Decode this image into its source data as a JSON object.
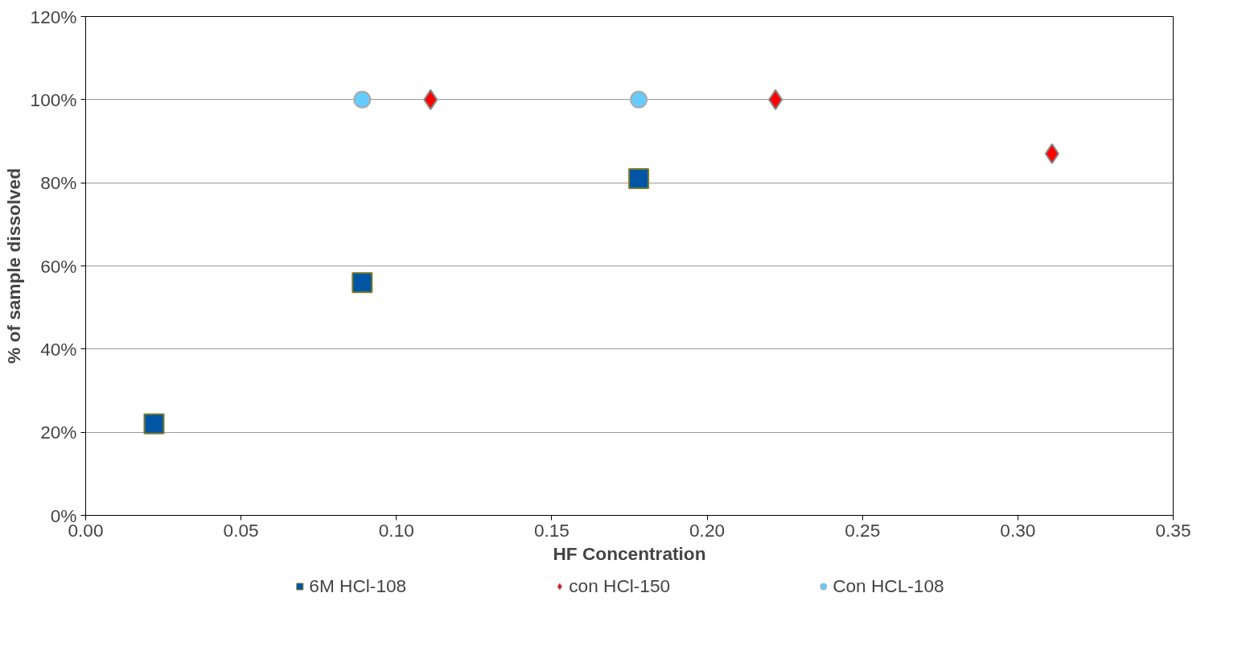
{
  "chart_data": {
    "type": "scatter",
    "xlabel": "HF Concentration",
    "ylabel": "% of sample dissolved",
    "xlim": [
      0,
      0.35
    ],
    "ylim": [
      0,
      120
    ],
    "xticks": [
      {
        "value": 0,
        "label": "0.00"
      },
      {
        "value": 0.05,
        "label": "0.05"
      },
      {
        "value": 0.1,
        "label": "0.10"
      },
      {
        "value": 0.15,
        "label": "0.15"
      },
      {
        "value": 0.2,
        "label": "0.20"
      },
      {
        "value": 0.25,
        "label": "0.25"
      },
      {
        "value": 0.3,
        "label": "0.30"
      },
      {
        "value": 0.35,
        "label": "0.35"
      }
    ],
    "yticks": [
      {
        "value": 0,
        "label": "0%"
      },
      {
        "value": 20,
        "label": "20%"
      },
      {
        "value": 40,
        "label": "40%"
      },
      {
        "value": 60,
        "label": "60%"
      },
      {
        "value": 80,
        "label": "80%"
      },
      {
        "value": 100,
        "label": "100%"
      },
      {
        "value": 120,
        "label": "120%"
      }
    ],
    "grid": "y",
    "legend": "bottom",
    "series": [
      {
        "name": "6M HCl-108",
        "color": "#0055a5",
        "marker": "square",
        "x": [
          0.022,
          0.089,
          0.178
        ],
        "values": [
          22,
          56,
          81
        ]
      },
      {
        "name": "con HCl-150",
        "color": "#ff0000",
        "marker": "diamond",
        "x": [
          0.111,
          0.222,
          0.311
        ],
        "values": [
          100,
          100,
          87
        ]
      },
      {
        "name": "Con HCL-108",
        "color": "#66ccff",
        "marker": "circle",
        "x": [
          0.089,
          0.178
        ],
        "values": [
          100,
          100
        ]
      }
    ]
  }
}
